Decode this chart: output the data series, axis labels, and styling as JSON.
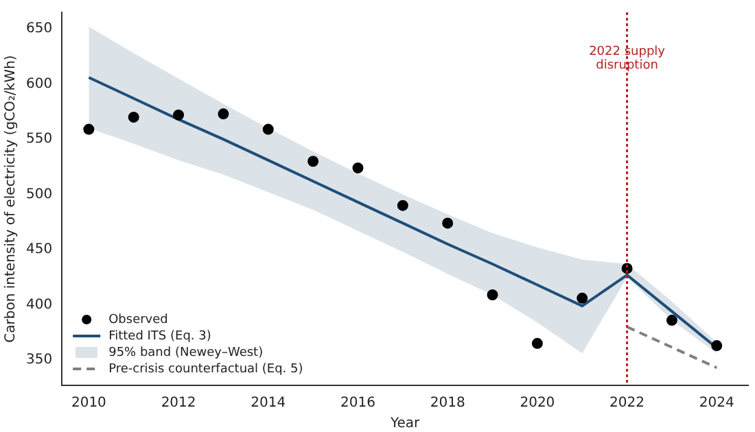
{
  "chart_data": {
    "type": "line",
    "xlabel": "Year",
    "ylabel": "Carbon intensity of electricity (gCO₂/kWh)",
    "xlim": [
      2009.4,
      2024.7
    ],
    "xticks": [
      2010,
      2012,
      2014,
      2016,
      2018,
      2020,
      2022,
      2024
    ],
    "ylim": [
      327,
      665
    ],
    "yticks": [
      350,
      400,
      450,
      500,
      550,
      600,
      650
    ],
    "grid": false,
    "legend": "bottom left",
    "series": [
      {
        "name": "Observed",
        "type": "scatter",
        "marker": "circle",
        "color": "#000000",
        "x": [
          2010,
          2011,
          2012,
          2013,
          2014,
          2015,
          2016,
          2017,
          2018,
          2019,
          2020,
          2021,
          2022,
          2023,
          2024
        ],
        "values": [
          559,
          570,
          572,
          573,
          559,
          530,
          524,
          490,
          474,
          409,
          365,
          406,
          433,
          386,
          363
        ]
      },
      {
        "name": "Fitted ITS (Eq. 3)",
        "line_style": "solid",
        "color": "#1f4e79",
        "x": [
          2010,
          2011,
          2012,
          2013,
          2014,
          2015,
          2016,
          2017,
          2018,
          2019,
          2020,
          2021,
          2022,
          2023,
          2024
        ],
        "values": [
          606,
          587,
          568,
          550,
          531,
          512,
          493,
          474,
          455,
          437,
          418,
          399,
          427,
          394,
          361
        ],
        "lower": [
          560,
          546,
          531,
          518,
          502,
          486,
          467,
          448,
          428,
          409,
          384,
          356,
          425,
          386,
          356
        ],
        "upper": [
          652,
          628,
          605,
          582,
          560,
          539,
          519,
          500,
          482,
          465,
          452,
          441,
          437,
          403,
          366
        ]
      },
      {
        "name": "Pre-crisis counterfactual (Eq. 5)",
        "line_style": "dashed",
        "color": "#808080",
        "x": [
          2022,
          2024
        ],
        "values": [
          380,
          343
        ]
      }
    ],
    "annotations": [
      "95% band (Newey–West)"
    ],
    "ref_lines": [
      {
        "axis": "x",
        "value": 2022,
        "label": "2022 supply disruption",
        "color": "#b22222",
        "line_style": "dotted"
      }
    ]
  }
}
